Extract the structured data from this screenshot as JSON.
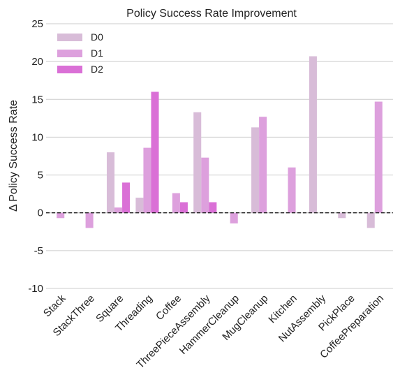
{
  "chart_data": {
    "type": "bar",
    "title": "Policy Success Rate Improvement",
    "xlabel": "",
    "ylabel": "Δ Policy Success Rate",
    "ylim": [
      -10,
      25
    ],
    "yticks": [
      -10,
      -5,
      0,
      5,
      10,
      15,
      20,
      25
    ],
    "grid": "horizontal",
    "zero_line": "dashed",
    "legend_position": "top-left",
    "categories": [
      "Stack",
      "StackThree",
      "Square",
      "Threading",
      "Coffee",
      "ThreePieceAssembly",
      "HammerCleanup",
      "MugCleanup",
      "Kitchen",
      "NutAssembly",
      "PickPlace",
      "CoffeePreparation"
    ],
    "series": [
      {
        "name": "D0",
        "color": "#d8bcd8",
        "values": [
          0,
          0,
          8.0,
          2.0,
          0,
          13.3,
          0,
          11.3,
          0,
          20.7,
          -0.7,
          -2.0
        ]
      },
      {
        "name": "D1",
        "color": "#dda0dd",
        "values": [
          -0.7,
          -2.0,
          0.7,
          8.6,
          2.6,
          7.3,
          -1.4,
          12.7,
          6.0,
          0,
          0,
          14.7
        ]
      },
      {
        "name": "D2",
        "color": "#da70d6",
        "values": [
          0,
          0,
          4.0,
          16.0,
          1.4,
          1.4,
          0,
          0,
          0,
          0,
          0,
          0
        ]
      }
    ]
  }
}
